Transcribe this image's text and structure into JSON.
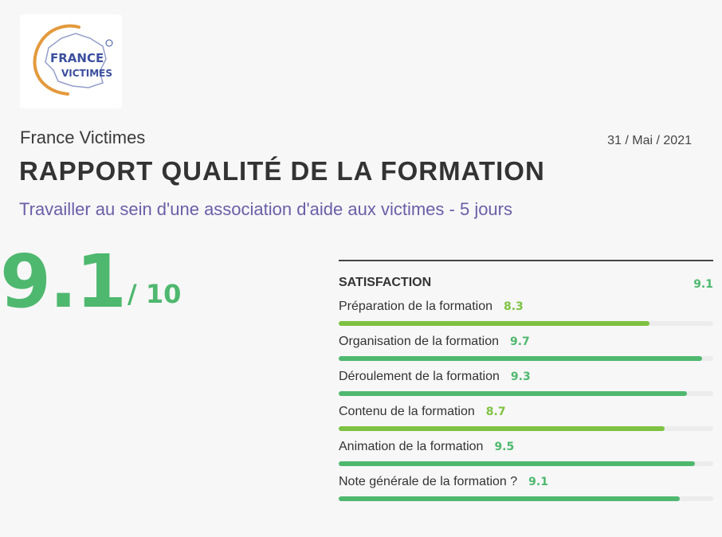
{
  "logo": {
    "line1": "FRANCE",
    "line2": "VICTIMES"
  },
  "header": {
    "org_name": "France Victimes",
    "date": "31 / Mai / 2021",
    "title": "RAPPORT QUALITÉ DE LA FORMATION",
    "subtitle": "Travailler au sein d'une association d'aide aux victimes - 5 jours"
  },
  "overall": {
    "score": "9.1",
    "denominator": "/ 10"
  },
  "satisfaction": {
    "label": "SATISFACTION",
    "score": "9.1",
    "scale_max": 10,
    "items": [
      {
        "label": "Préparation de la formation",
        "score": 8.3,
        "color": "#7dc242"
      },
      {
        "label": "Organisation de la formation",
        "score": 9.7,
        "color": "#4fb86f"
      },
      {
        "label": "Déroulement de la formation",
        "score": 9.3,
        "color": "#4fb86f"
      },
      {
        "label": "Contenu de la formation",
        "score": 8.7,
        "color": "#7dc242"
      },
      {
        "label": "Animation de la formation",
        "score": 9.5,
        "color": "#4fb86f"
      },
      {
        "label": "Note générale de la formation ?",
        "score": 9.1,
        "color": "#4fb86f"
      }
    ]
  }
}
